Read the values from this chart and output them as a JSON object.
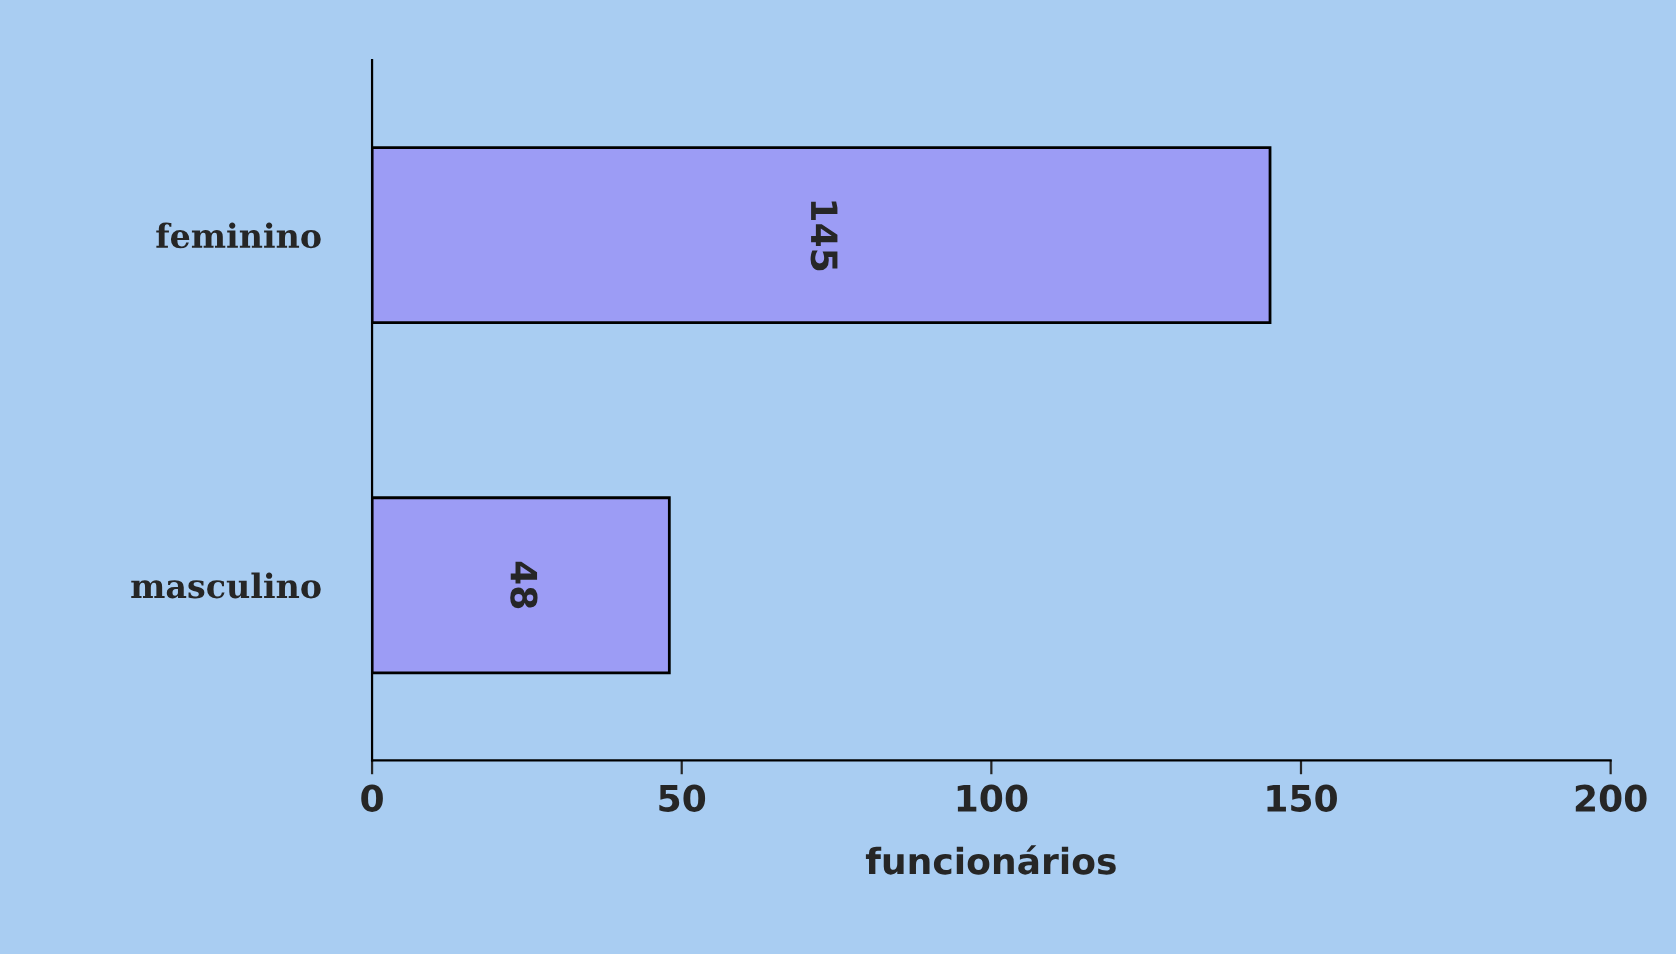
{
  "chart_data": {
    "type": "bar",
    "orientation": "horizontal",
    "categories": [
      "feminino",
      "masculino"
    ],
    "values": [
      145,
      48
    ],
    "color": "#9c9cf5",
    "xlabel": "funcionários",
    "xlim": [
      0,
      200
    ],
    "xticks": [
      0,
      50,
      100,
      150,
      200
    ],
    "grid": false,
    "data_labels": true
  }
}
